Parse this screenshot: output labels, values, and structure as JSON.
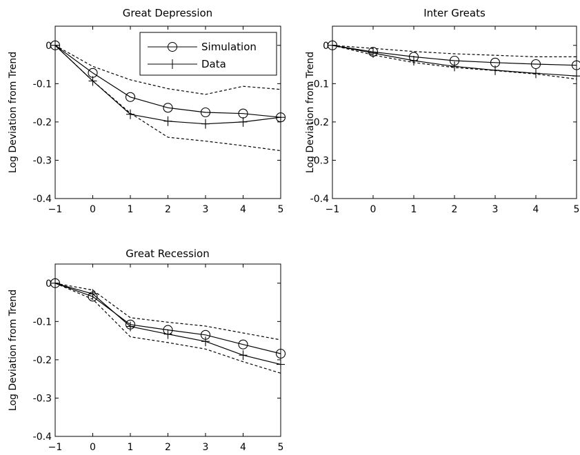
{
  "chart_data": [
    {
      "type": "line",
      "title": "Great Depression",
      "xlabel": "",
      "ylabel": "Log Deviation from Trend",
      "xlim": [
        -1,
        5
      ],
      "ylim": [
        -0.4,
        0.05
      ],
      "xticks": [
        "−1",
        "0",
        "1",
        "2",
        "3",
        "4",
        "5"
      ],
      "yticks": [
        "0",
        "-0.1",
        "-0.2",
        "-0.3",
        "-0.4"
      ],
      "x": [
        -1,
        0,
        1,
        2,
        3,
        4,
        5
      ],
      "series": [
        {
          "name": "Simulation",
          "marker": "circle",
          "style": "solid",
          "values": [
            0,
            -0.072,
            -0.135,
            -0.163,
            -0.175,
            -0.178,
            -0.188
          ]
        },
        {
          "name": "Data",
          "marker": "plus",
          "style": "solid",
          "values": [
            0,
            -0.093,
            -0.18,
            -0.198,
            -0.205,
            -0.2,
            -0.188
          ]
        },
        {
          "name": "",
          "marker": "none",
          "style": "dashed",
          "values": [
            0,
            -0.055,
            -0.09,
            -0.113,
            -0.128,
            -0.107,
            -0.115
          ]
        },
        {
          "name": "",
          "marker": "none",
          "style": "dashed",
          "values": [
            0,
            -0.093,
            -0.177,
            -0.24,
            -0.25,
            -0.262,
            -0.275
          ]
        }
      ],
      "legend": {
        "placement": "top-right",
        "entries": [
          "Simulation",
          "Data"
        ]
      },
      "grid": false
    },
    {
      "type": "line",
      "title": "Inter Greats",
      "xlabel": "",
      "ylabel": "Log Deviation from Trend",
      "xlim": [
        -1,
        5
      ],
      "ylim": [
        -0.4,
        0.05
      ],
      "xticks": [
        "−1",
        "0",
        "1",
        "2",
        "3",
        "4",
        "5"
      ],
      "yticks": [
        "0",
        "-0.1",
        "-0.2",
        "-0.3",
        "-0.4"
      ],
      "x": [
        -1,
        0,
        1,
        2,
        3,
        4,
        5
      ],
      "series": [
        {
          "name": "Simulation",
          "marker": "circle",
          "style": "solid",
          "values": [
            0,
            -0.017,
            -0.03,
            -0.04,
            -0.045,
            -0.049,
            -0.052
          ]
        },
        {
          "name": "Data",
          "marker": "plus",
          "style": "solid",
          "values": [
            0,
            -0.02,
            -0.04,
            -0.055,
            -0.065,
            -0.073,
            -0.08
          ]
        },
        {
          "name": "",
          "marker": "none",
          "style": "dashed",
          "values": [
            0,
            -0.008,
            -0.016,
            -0.022,
            -0.026,
            -0.03,
            -0.03
          ]
        },
        {
          "name": "",
          "marker": "none",
          "style": "dashed",
          "values": [
            0,
            -0.025,
            -0.045,
            -0.058,
            -0.066,
            -0.075,
            -0.088
          ]
        }
      ],
      "grid": false
    },
    {
      "type": "line",
      "title": "Great Recession",
      "xlabel": "",
      "ylabel": "Log Deviation from Trend",
      "xlim": [
        -1,
        5
      ],
      "ylim": [
        -0.4,
        0.05
      ],
      "xticks": [
        "−1",
        "0",
        "1",
        "2",
        "3",
        "4",
        "5"
      ],
      "yticks": [
        "0",
        "-0.1",
        "-0.2",
        "-0.3",
        "-0.4"
      ],
      "x": [
        -1,
        0,
        1,
        2,
        3,
        4,
        5
      ],
      "series": [
        {
          "name": "Simulation",
          "marker": "circle",
          "style": "solid",
          "values": [
            0,
            -0.035,
            -0.108,
            -0.122,
            -0.135,
            -0.16,
            -0.184
          ]
        },
        {
          "name": "Data",
          "marker": "plus",
          "style": "solid",
          "values": [
            0,
            -0.028,
            -0.113,
            -0.133,
            -0.152,
            -0.188,
            -0.212
          ]
        },
        {
          "name": "",
          "marker": "none",
          "style": "dashed",
          "values": [
            0,
            -0.018,
            -0.09,
            -0.102,
            -0.112,
            -0.13,
            -0.148
          ]
        },
        {
          "name": "",
          "marker": "none",
          "style": "dashed",
          "values": [
            0,
            -0.042,
            -0.14,
            -0.155,
            -0.172,
            -0.205,
            -0.235
          ]
        }
      ],
      "grid": false
    }
  ]
}
